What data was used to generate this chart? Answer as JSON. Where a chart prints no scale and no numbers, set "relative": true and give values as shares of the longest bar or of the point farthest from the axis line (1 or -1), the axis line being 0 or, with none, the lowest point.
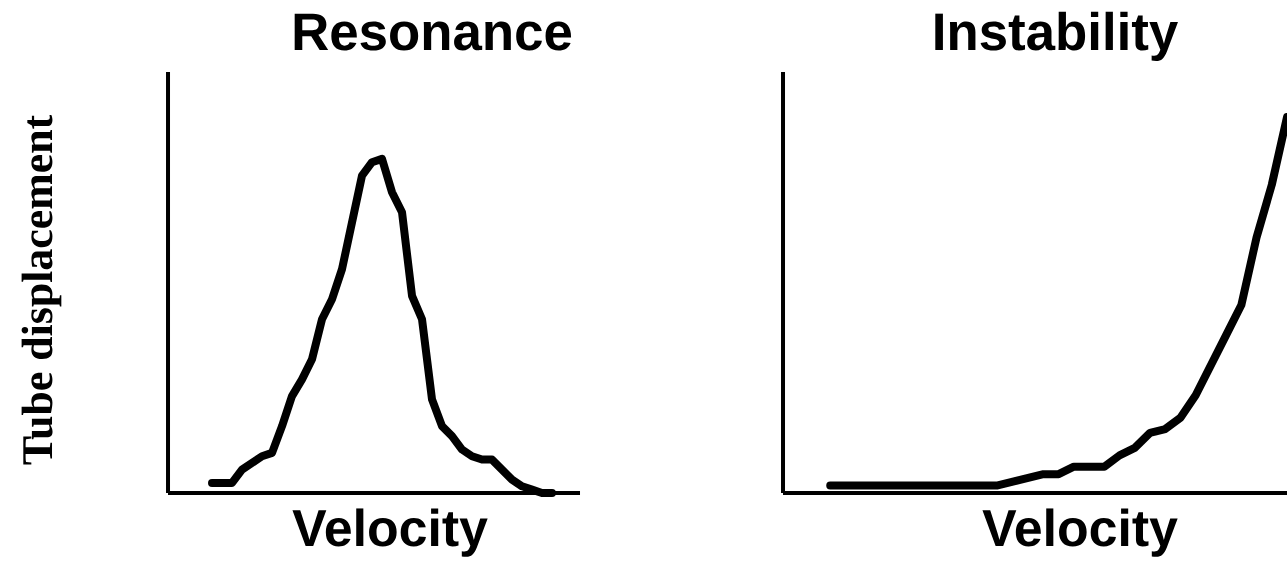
{
  "chart_data": [
    {
      "type": "line",
      "title": "Resonance",
      "xlabel": "Velocity",
      "ylabel": "Tube displacement",
      "relative": true,
      "color": "#000000",
      "marker": "none",
      "line_style": "solid",
      "categories": [
        null,
        null,
        null,
        null,
        null,
        null,
        null,
        null,
        null,
        null,
        null,
        null,
        null,
        null,
        null,
        null,
        null,
        null,
        null,
        null,
        null,
        null,
        null,
        null,
        null,
        null,
        null,
        null,
        null,
        null,
        null,
        null,
        null,
        null,
        null
      ],
      "values": [
        0.03,
        0.03,
        0.03,
        0.07,
        0.09,
        0.11,
        0.12,
        0.2,
        0.29,
        0.34,
        0.4,
        0.52,
        0.58,
        0.67,
        0.81,
        0.95,
        0.99,
        1.0,
        0.9,
        0.84,
        0.59,
        0.52,
        0.28,
        0.2,
        0.17,
        0.13,
        0.11,
        0.1,
        0.1,
        0.07,
        0.04,
        0.02,
        0.01,
        0.0,
        0.0
      ]
    },
    {
      "type": "line",
      "title": "Instability",
      "xlabel": "Velocity",
      "relative": true,
      "color": "#000000",
      "marker": "none",
      "line_style": "solid",
      "categories": [
        null,
        null,
        null,
        null,
        null,
        null,
        null,
        null,
        null,
        null,
        null,
        null,
        null,
        null,
        null,
        null,
        null,
        null,
        null,
        null,
        null,
        null,
        null,
        null,
        null,
        null,
        null,
        null,
        null,
        null,
        null
      ],
      "values": [
        0.02,
        0.02,
        0.02,
        0.02,
        0.02,
        0.02,
        0.02,
        0.02,
        0.02,
        0.02,
        0.02,
        0.02,
        0.03,
        0.04,
        0.05,
        0.05,
        0.07,
        0.07,
        0.07,
        0.1,
        0.12,
        0.16,
        0.17,
        0.2,
        0.26,
        0.34,
        0.42,
        0.5,
        0.68,
        0.82,
        1.0
      ]
    }
  ]
}
